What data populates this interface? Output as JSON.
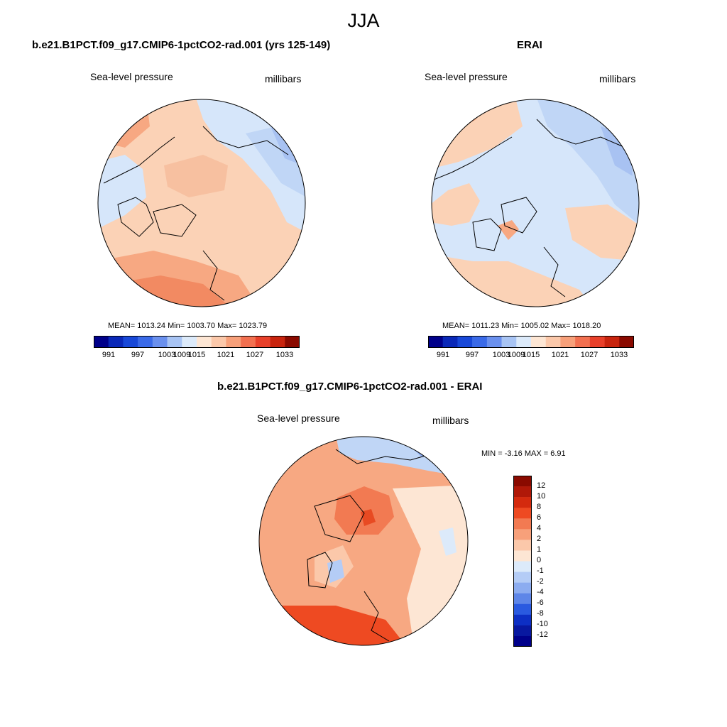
{
  "figure": {
    "season": "JJA"
  },
  "panels": [
    {
      "title": "b.e21.B1PCT.f09_g17.CMIP6-1pctCO2-rad.001 (yrs 125-149)",
      "variable": "Sea-level pressure",
      "units": "millibars",
      "stats": "MEAN= 1013.24  Min= 1003.70  Max= 1023.79"
    },
    {
      "title": "ERAI",
      "variable": "Sea-level pressure",
      "units": "millibars",
      "stats": "MEAN= 1011.23  Min= 1005.02  Max= 1018.20"
    },
    {
      "title": "b.e21.B1PCT.f09_g17.CMIP6-1pctCO2-rad.001 - ERAI",
      "variable": "Sea-level pressure",
      "units": "millibars",
      "stats": "MIN =  -3.16 MAX =   6.91"
    }
  ],
  "colorbar_abs": {
    "tick_labels": [
      "991",
      "997",
      "1003",
      "1009",
      "1015",
      "1021",
      "1027",
      "1033"
    ],
    "colors": [
      "#00008a",
      "#0a28b8",
      "#1848d8",
      "#3a6ae8",
      "#6a90ee",
      "#a8c4f4",
      "#dceafa",
      "#fde6d4",
      "#fbc8aa",
      "#f7a07a",
      "#f27050",
      "#e8402a",
      "#c8240e",
      "#8a0a00"
    ]
  },
  "colorbar_diff": {
    "tick_labels": [
      "12",
      "10",
      "8",
      "6",
      "4",
      "2",
      "1",
      "0",
      "-1",
      "-2",
      "-4",
      "-6",
      "-8",
      "-10",
      "-12"
    ],
    "colors": [
      "#8a0a00",
      "#b01808",
      "#d42a0e",
      "#ee4a22",
      "#f27a52",
      "#f7a07a",
      "#fbc8aa",
      "#fde6d4",
      "#dceafa",
      "#b4ccf6",
      "#8cacf0",
      "#5e86e8",
      "#2a5ae0",
      "#0d2fc4",
      "#0818a0",
      "#00008a"
    ]
  }
}
